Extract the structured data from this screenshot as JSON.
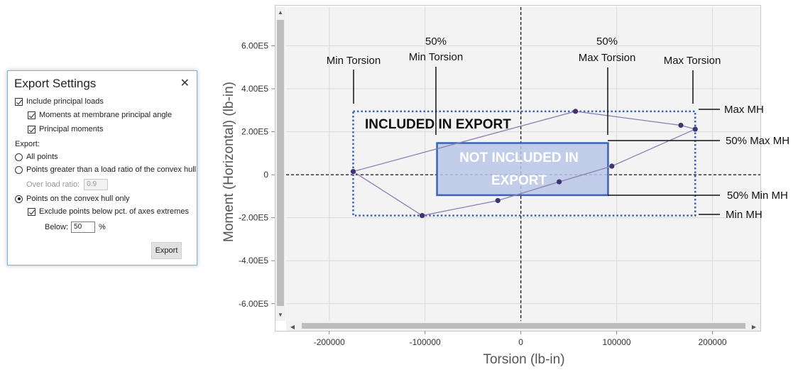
{
  "dialog": {
    "title": "Export Settings",
    "close_glyph": "✕",
    "include_principal_loads": {
      "label": "Include principal loads",
      "checked": true
    },
    "moments_membrane": {
      "label": "Moments at membrane principal angle",
      "checked": true
    },
    "principal_moments": {
      "label": "Principal moments",
      "checked": true
    },
    "export_label": "Export:",
    "options": {
      "all_points": "All points",
      "greater_than_load_ratio": "Points greater than a load ratio of the convex hull",
      "convex_hull_only": "Points on the convex hull only"
    },
    "selected_option": "convex_hull_only",
    "over_load_ratio": {
      "label": "Over load ratio:",
      "value": "0.9"
    },
    "exclude_below_pct": {
      "label": "Exclude points below pct. of axes extremes",
      "checked": true
    },
    "below": {
      "label": "Below:",
      "value": "50",
      "unit": "%"
    },
    "export_button": "Export"
  },
  "chart_data": {
    "type": "scatter",
    "xlabel": "Torsion (lb-in)",
    "ylabel": "Moment (Horizontal) (lb-in)",
    "xlim": [
      -245000,
      250000
    ],
    "ylim": [
      -680000,
      780000
    ],
    "xticks": [
      -200000,
      -100000,
      0,
      100000,
      200000
    ],
    "xtick_labels": [
      "-200000",
      "-100000",
      "0",
      "100000",
      "200000"
    ],
    "yticks": [
      600000,
      400000,
      200000,
      0,
      -200000,
      -400000,
      -600000
    ],
    "ytick_labels": [
      "6.00E5",
      "4.00E5",
      "2.00E5",
      "0",
      "-2.00E5",
      "-4.00E5",
      "-6.00E5"
    ],
    "points": [
      {
        "x": -175000,
        "y": 15000
      },
      {
        "x": -103000,
        "y": -190000
      },
      {
        "x": -24000,
        "y": -120000
      },
      {
        "x": 40000,
        "y": -33000
      },
      {
        "x": 95000,
        "y": 40000
      },
      {
        "x": 182000,
        "y": 212000
      },
      {
        "x": 167000,
        "y": 230000
      },
      {
        "x": 57000,
        "y": 295000
      }
    ],
    "hull_order": [
      0,
      1,
      2,
      3,
      4,
      5,
      6,
      7,
      0
    ],
    "outer_box": {
      "x0": -175000,
      "x1": 182000,
      "y0": -190000,
      "y1": 295000
    },
    "inner_box": {
      "x0": -87500,
      "x1": 91000,
      "y0": -95000,
      "y1": 147500
    },
    "colors": {
      "hull": "#8b7fb2",
      "point": "#3f3470",
      "outer_box": "#3a63b8",
      "inner_fill": "#b8c7e6",
      "inner_stroke": "#3a63b8"
    }
  },
  "annotations": {
    "min_torsion": "Min Torsion",
    "fifty_min_torsion_1": "50%",
    "fifty_min_torsion_2": "Min Torsion",
    "fifty_max_torsion_1": "50%",
    "fifty_max_torsion_2": "Max Torsion",
    "max_torsion": "Max Torsion",
    "max_mh": "Max MH",
    "fifty_max_mh": "50% Max MH",
    "fifty_min_mh": "50% Min MH",
    "min_mh": "Min MH",
    "included": "INCLUDED IN EXPORT",
    "not_included_1": "NOT INCLUDED IN",
    "not_included_2": "EXPORT"
  },
  "scrollbars": {
    "up_glyph": "▲",
    "down_glyph": "▼",
    "left_glyph": "◀",
    "right_glyph": "▶"
  }
}
